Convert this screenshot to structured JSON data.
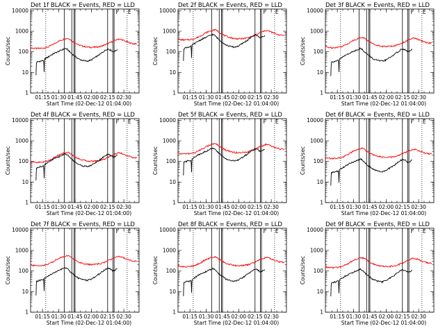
{
  "colors": {
    "events": "#000000",
    "lld": "#ff0000"
  },
  "chart_data": {
    "type": "line",
    "x_tick_labels": [
      "01:15",
      "01:30",
      "01:45",
      "02:00",
      "02:15",
      "02:30"
    ],
    "x_ticks_minutes": [
      75,
      90,
      105,
      120,
      135,
      150
    ],
    "xlim_minutes": [
      64,
      164
    ],
    "ylim": [
      1,
      12000
    ],
    "y_scale": "log",
    "y_tick_labels": [
      "1",
      "10",
      "100",
      "1000",
      "10000"
    ],
    "y_tick_values": [
      1,
      10,
      100,
      1000,
      10000
    ],
    "ylabel": "Counts/sec",
    "xlabel": "Start Time (02-Dec-12 01:04:00)",
    "dotted_lines_minutes": [
      78,
      153
    ],
    "solid_lines_minutes": [
      95,
      102,
      104,
      105,
      135,
      140,
      141
    ],
    "flag_marks": [
      {
        "label": "F",
        "minute": 142
      },
      {
        "label": "E",
        "minute": 153
      }
    ],
    "panels": [
      {
        "title": "Det 1f BLACK = Events, RED = LLD",
        "lld_scale": 1.0,
        "events_scale": 1.0
      },
      {
        "title": "Det 2f BLACK = Events, RED = LLD",
        "lld_scale": 2.6,
        "events_scale": 4.8
      },
      {
        "title": "Det 3f BLACK = Events, RED = LLD",
        "lld_scale": 1.1,
        "events_scale": 1.0
      },
      {
        "title": "Det 4f BLACK = Events, RED = LLD",
        "lld_scale": 0.62,
        "events_scale": 1.6
      },
      {
        "title": "Det 5f BLACK = Events, RED = LLD",
        "lld_scale": 1.6,
        "events_scale": 3.0
      },
      {
        "title": "Det 6f BLACK = Events, RED = LLD",
        "lld_scale": 0.95,
        "events_scale": 0.9
      },
      {
        "title": "Det 7f BLACK = Events, RED = LLD",
        "lld_scale": 1.25,
        "events_scale": 1.0
      },
      {
        "title": "Det 8f BLACK = Events, RED = LLD",
        "lld_scale": 1.1,
        "events_scale": 0.9
      },
      {
        "title": "Det 9f BLACK = Events, RED = LLD",
        "lld_scale": 1.0,
        "events_scale": 0.85
      }
    ],
    "series": [
      {
        "name": "LLD",
        "color": "red",
        "x": [
          64,
          66,
          70,
          75,
          80,
          85,
          90,
          93,
          96,
          98,
          100,
          102,
          105,
          108,
          112,
          116,
          120,
          124,
          128,
          132,
          135,
          138,
          140,
          142,
          145,
          148,
          151,
          154,
          158,
          162
        ],
        "values": [
          160,
          150,
          145,
          150,
          170,
          230,
          330,
          380,
          430,
          450,
          420,
          340,
          270,
          220,
          190,
          170,
          165,
          170,
          180,
          210,
          250,
          290,
          330,
          360,
          420,
          390,
          330,
          290,
          250,
          240
        ]
      },
      {
        "name": "Events",
        "color": "black",
        "x": [
          69,
          69.5,
          70,
          72,
          74,
          76,
          76.5,
          77,
          80,
          85,
          90,
          93,
          96,
          98,
          100,
          102,
          105,
          108,
          112,
          116,
          120,
          124,
          128,
          132,
          135,
          138,
          140,
          142,
          144
        ],
        "values": [
          7,
          30,
          32,
          34,
          36,
          38,
          10,
          45,
          55,
          80,
          105,
          125,
          145,
          130,
          100,
          80,
          60,
          45,
          38,
          35,
          40,
          55,
          75,
          110,
          140,
          120,
          100,
          110,
          130
        ]
      }
    ]
  }
}
